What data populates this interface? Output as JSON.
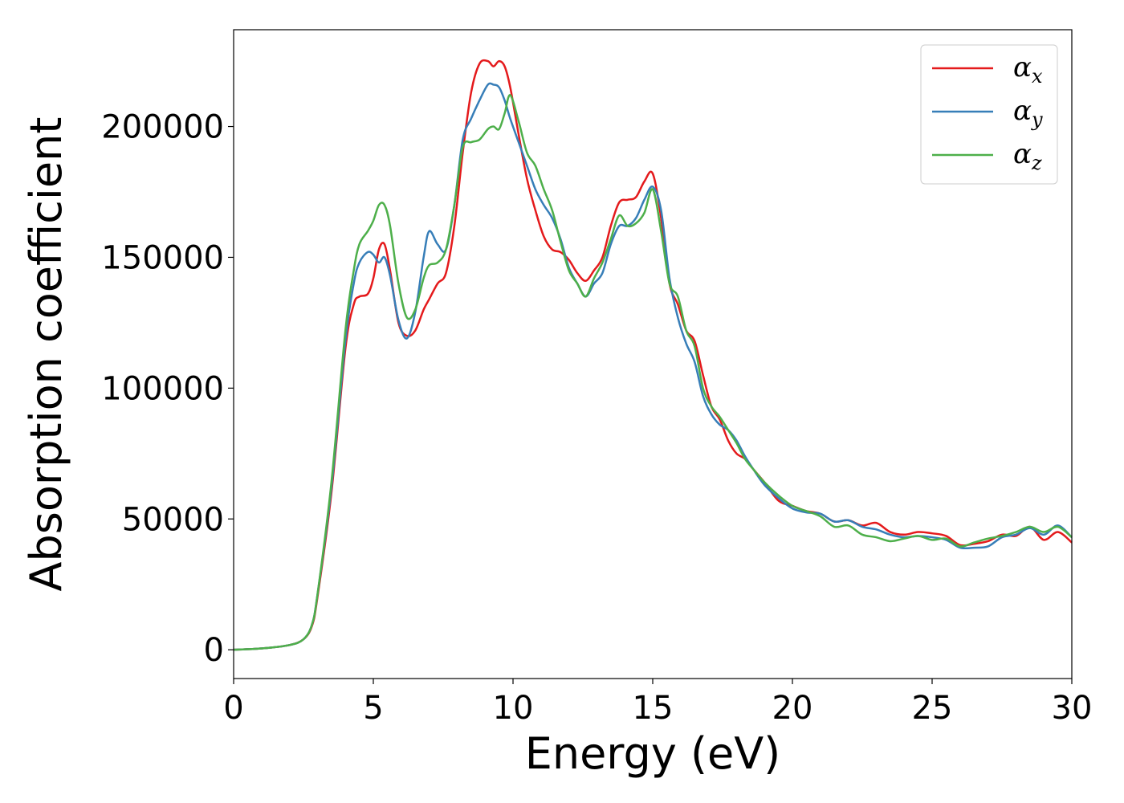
{
  "chart_data": {
    "type": "line",
    "xlabel": "Energy (eV)",
    "ylabel": "Absorption coefficient",
    "xlim": [
      0,
      30
    ],
    "ylim": [
      -11000,
      237000
    ],
    "xticks": [
      0,
      5,
      10,
      15,
      20,
      25,
      30
    ],
    "yticks": [
      0,
      50000,
      100000,
      150000,
      200000
    ],
    "xtick_labels": [
      "0",
      "5",
      "10",
      "15",
      "20",
      "25",
      "30"
    ],
    "ytick_labels": [
      "0",
      "50000",
      "100000",
      "150000",
      "200000"
    ],
    "grid": false,
    "legend_position": "top-right",
    "series": [
      {
        "name": "α_x",
        "label_main": "α",
        "label_sub": "x",
        "color": "#e41a1c",
        "x": [
          0,
          1,
          2,
          2.5,
          2.8,
          3.0,
          3.5,
          4.0,
          4.3,
          4.5,
          4.8,
          5.0,
          5.2,
          5.4,
          5.6,
          5.9,
          6.2,
          6.5,
          6.8,
          7.0,
          7.3,
          7.6,
          7.9,
          8.2,
          8.5,
          8.8,
          9.1,
          9.3,
          9.5,
          9.7,
          9.9,
          10.2,
          10.5,
          10.8,
          11.1,
          11.4,
          11.7,
          12.0,
          12.3,
          12.6,
          12.9,
          13.2,
          13.5,
          13.8,
          14.1,
          14.4,
          14.7,
          15.0,
          15.3,
          15.6,
          15.9,
          16.2,
          16.5,
          16.8,
          17.1,
          17.4,
          17.7,
          18.0,
          18.3,
          18.6,
          19.0,
          19.5,
          20.0,
          20.5,
          21.0,
          21.5,
          22.0,
          22.5,
          23.0,
          23.5,
          24.0,
          24.5,
          25.0,
          25.5,
          26.0,
          26.5,
          27.0,
          27.5,
          28.0,
          28.5,
          29.0,
          29.5,
          30.0
        ],
        "y": [
          0,
          500,
          1800,
          4000,
          9000,
          20000,
          60000,
          115000,
          132000,
          135000,
          136000,
          142000,
          153000,
          155000,
          145000,
          125000,
          120000,
          122000,
          130000,
          134000,
          140000,
          144000,
          162000,
          190000,
          213000,
          224000,
          225000,
          223000,
          225000,
          223000,
          215000,
          197000,
          180000,
          168000,
          158000,
          153000,
          152000,
          149000,
          144000,
          141000,
          145000,
          150000,
          162000,
          171000,
          172000,
          173000,
          179000,
          182000,
          165000,
          140000,
          132000,
          122000,
          118000,
          105000,
          93000,
          88000,
          80000,
          75000,
          73000,
          69000,
          64000,
          57000,
          55000,
          53000,
          52000,
          49000,
          49500,
          47500,
          48500,
          45000,
          44000,
          45000,
          44500,
          43500,
          40000,
          40500,
          41500,
          44000,
          43500,
          47000,
          42000,
          45000,
          41000
        ]
      },
      {
        "name": "α_y",
        "label_main": "α",
        "label_sub": "y",
        "color": "#377eb8",
        "x": [
          0,
          1,
          2,
          2.5,
          2.8,
          3.0,
          3.5,
          4.0,
          4.3,
          4.5,
          4.8,
          5.0,
          5.2,
          5.4,
          5.6,
          5.9,
          6.2,
          6.5,
          6.8,
          7.0,
          7.3,
          7.6,
          7.9,
          8.2,
          8.5,
          8.8,
          9.1,
          9.3,
          9.5,
          9.7,
          9.9,
          10.2,
          10.5,
          10.8,
          11.1,
          11.4,
          11.7,
          12.0,
          12.3,
          12.6,
          12.9,
          13.2,
          13.5,
          13.8,
          14.1,
          14.4,
          14.7,
          15.0,
          15.3,
          15.6,
          15.9,
          16.2,
          16.5,
          16.8,
          17.1,
          17.4,
          17.7,
          18.0,
          18.3,
          18.6,
          19.0,
          19.5,
          20.0,
          20.5,
          21.0,
          21.5,
          22.0,
          22.5,
          23.0,
          23.5,
          24.0,
          24.5,
          25.0,
          25.5,
          26.0,
          26.5,
          27.0,
          27.5,
          28.0,
          28.5,
          29.0,
          29.5,
          30.0
        ],
        "y": [
          0,
          500,
          1800,
          4000,
          9500,
          21000,
          62000,
          118000,
          140000,
          148000,
          152000,
          151000,
          148000,
          150000,
          143000,
          126000,
          119000,
          129000,
          150000,
          160000,
          155000,
          153000,
          170000,
          195000,
          203000,
          210000,
          216000,
          216000,
          215000,
          210000,
          203000,
          194000,
          185000,
          176000,
          170000,
          165000,
          157000,
          146000,
          140000,
          135000,
          140000,
          144000,
          155000,
          162000,
          162000,
          165000,
          172000,
          177000,
          168000,
          142000,
          127000,
          117000,
          110000,
          97000,
          90000,
          86000,
          84000,
          80000,
          74000,
          69000,
          63000,
          58000,
          54000,
          52500,
          52000,
          49000,
          49500,
          47000,
          46000,
          44000,
          43000,
          43500,
          43000,
          42000,
          39000,
          39000,
          39500,
          43000,
          44000,
          46500,
          44000,
          47500,
          43000
        ]
      },
      {
        "name": "α_z",
        "label_main": "α",
        "label_sub": "z",
        "color": "#4daf4a",
        "x": [
          0,
          1,
          2,
          2.5,
          2.8,
          3.0,
          3.5,
          4.0,
          4.3,
          4.5,
          4.8,
          5.0,
          5.2,
          5.4,
          5.6,
          5.9,
          6.2,
          6.5,
          6.8,
          7.0,
          7.3,
          7.6,
          7.9,
          8.2,
          8.5,
          8.8,
          9.1,
          9.3,
          9.5,
          9.7,
          9.9,
          10.2,
          10.5,
          10.8,
          11.1,
          11.4,
          11.7,
          12.0,
          12.3,
          12.6,
          12.9,
          13.2,
          13.5,
          13.8,
          14.1,
          14.4,
          14.7,
          15.0,
          15.3,
          15.6,
          15.9,
          16.2,
          16.5,
          16.8,
          17.1,
          17.4,
          17.7,
          18.0,
          18.3,
          18.6,
          19.0,
          19.5,
          20.0,
          20.5,
          21.0,
          21.5,
          22.0,
          22.5,
          23.0,
          23.5,
          24.0,
          24.5,
          25.0,
          25.5,
          26.0,
          26.5,
          27.0,
          27.5,
          28.0,
          28.5,
          29.0,
          29.5,
          30.0
        ],
        "y": [
          0,
          500,
          1800,
          4000,
          9500,
          21000,
          64000,
          122000,
          145000,
          155000,
          160000,
          164000,
          170000,
          170000,
          162000,
          140000,
          127000,
          130000,
          142000,
          147000,
          148000,
          153000,
          170000,
          192000,
          194000,
          195000,
          199000,
          200000,
          199000,
          205000,
          212000,
          202000,
          190000,
          185000,
          176000,
          168000,
          156000,
          145000,
          140000,
          135000,
          142000,
          148000,
          157000,
          166000,
          162000,
          163000,
          167000,
          176000,
          160000,
          140000,
          135000,
          122000,
          116000,
          100000,
          93000,
          89000,
          84000,
          79000,
          73000,
          69000,
          64000,
          59000,
          55000,
          53000,
          51000,
          47000,
          47500,
          44000,
          43000,
          41500,
          42500,
          43500,
          42000,
          42500,
          39500,
          41000,
          42500,
          43500,
          45000,
          47000,
          45000,
          47000,
          43000
        ]
      }
    ]
  }
}
